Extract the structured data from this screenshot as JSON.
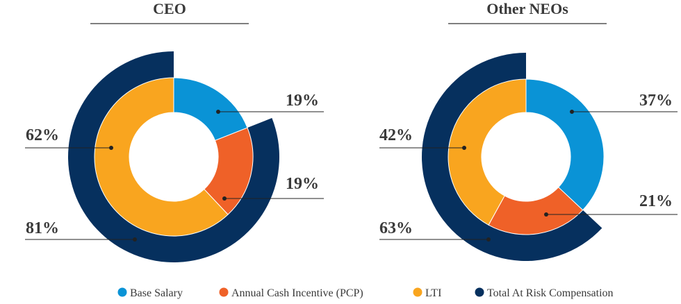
{
  "colors": {
    "base_salary": "#0A93D6",
    "pcp": "#EF6128",
    "lti": "#F9A51F",
    "at_risk": "#06305E",
    "text": "#3a3a3a"
  },
  "chart_data": [
    {
      "type": "pie",
      "title": "CEO",
      "inner": [
        {
          "key": "base_salary",
          "name": "Base Salary",
          "value": 19,
          "label": "19%"
        },
        {
          "key": "pcp",
          "name": "Annual Cash Incentive (PCP)",
          "value": 19,
          "label": "19%"
        },
        {
          "key": "lti",
          "name": "LTI",
          "value": 62,
          "label": "62%"
        }
      ],
      "outer": {
        "key": "at_risk",
        "name": "Total At Risk Compensation",
        "value": 81,
        "label": "81%"
      }
    },
    {
      "type": "pie",
      "title": "Other NEOs",
      "inner": [
        {
          "key": "base_salary",
          "name": "Base Salary",
          "value": 37,
          "label": "37%"
        },
        {
          "key": "pcp",
          "name": "Annual Cash Incentive (PCP)",
          "value": 21,
          "label": "21%"
        },
        {
          "key": "lti",
          "name": "LTI",
          "value": 42,
          "label": "42%"
        }
      ],
      "outer": {
        "key": "at_risk",
        "name": "Total At Risk Compensation",
        "value": 63,
        "label": "63%"
      }
    }
  ],
  "legend": [
    {
      "key": "base_salary",
      "label": "Base Salary"
    },
    {
      "key": "pcp",
      "label": "Annual Cash Incentive (PCP)"
    },
    {
      "key": "lti",
      "label": "LTI"
    },
    {
      "key": "at_risk",
      "label": "Total At Risk Compensation"
    }
  ]
}
